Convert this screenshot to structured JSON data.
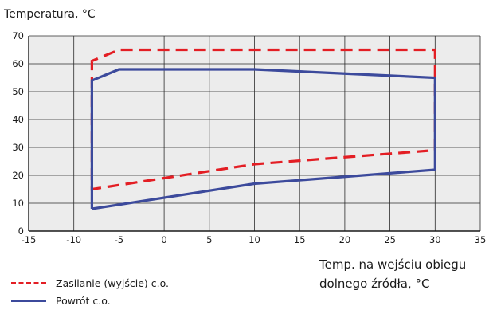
{
  "chart_data": {
    "type": "line",
    "ylabel": "Temperatura, °C",
    "xlabel_line1": "Temp. na wejściu obiegu",
    "xlabel_line2": "dolnego źródła, °C",
    "xlim": [
      -15,
      35
    ],
    "ylim": [
      0,
      70
    ],
    "xticks": [
      -15,
      -10,
      -5,
      0,
      5,
      10,
      15,
      20,
      25,
      30,
      35
    ],
    "yticks": [
      0,
      10,
      20,
      30,
      40,
      50,
      60,
      70
    ],
    "grid": true,
    "legend_position": "bottom-left",
    "series": [
      {
        "name": "Zasilanie (wyjście) c.o.",
        "style": "dashed",
        "color": "#e31e24",
        "x": [
          -8,
          -8,
          -5,
          10,
          30,
          30,
          30,
          10,
          0,
          -8,
          -8
        ],
        "y": [
          59,
          61,
          65,
          65,
          65,
          63,
          29,
          24,
          19,
          15,
          59
        ]
      },
      {
        "name": "Powrót c.o.",
        "style": "solid",
        "color": "#3c4a9c",
        "x": [
          -8,
          -8,
          -5,
          10,
          30,
          30,
          10,
          -5,
          -8
        ],
        "y": [
          8,
          54,
          58,
          58,
          55,
          22,
          17,
          9.5,
          8
        ]
      }
    ]
  }
}
